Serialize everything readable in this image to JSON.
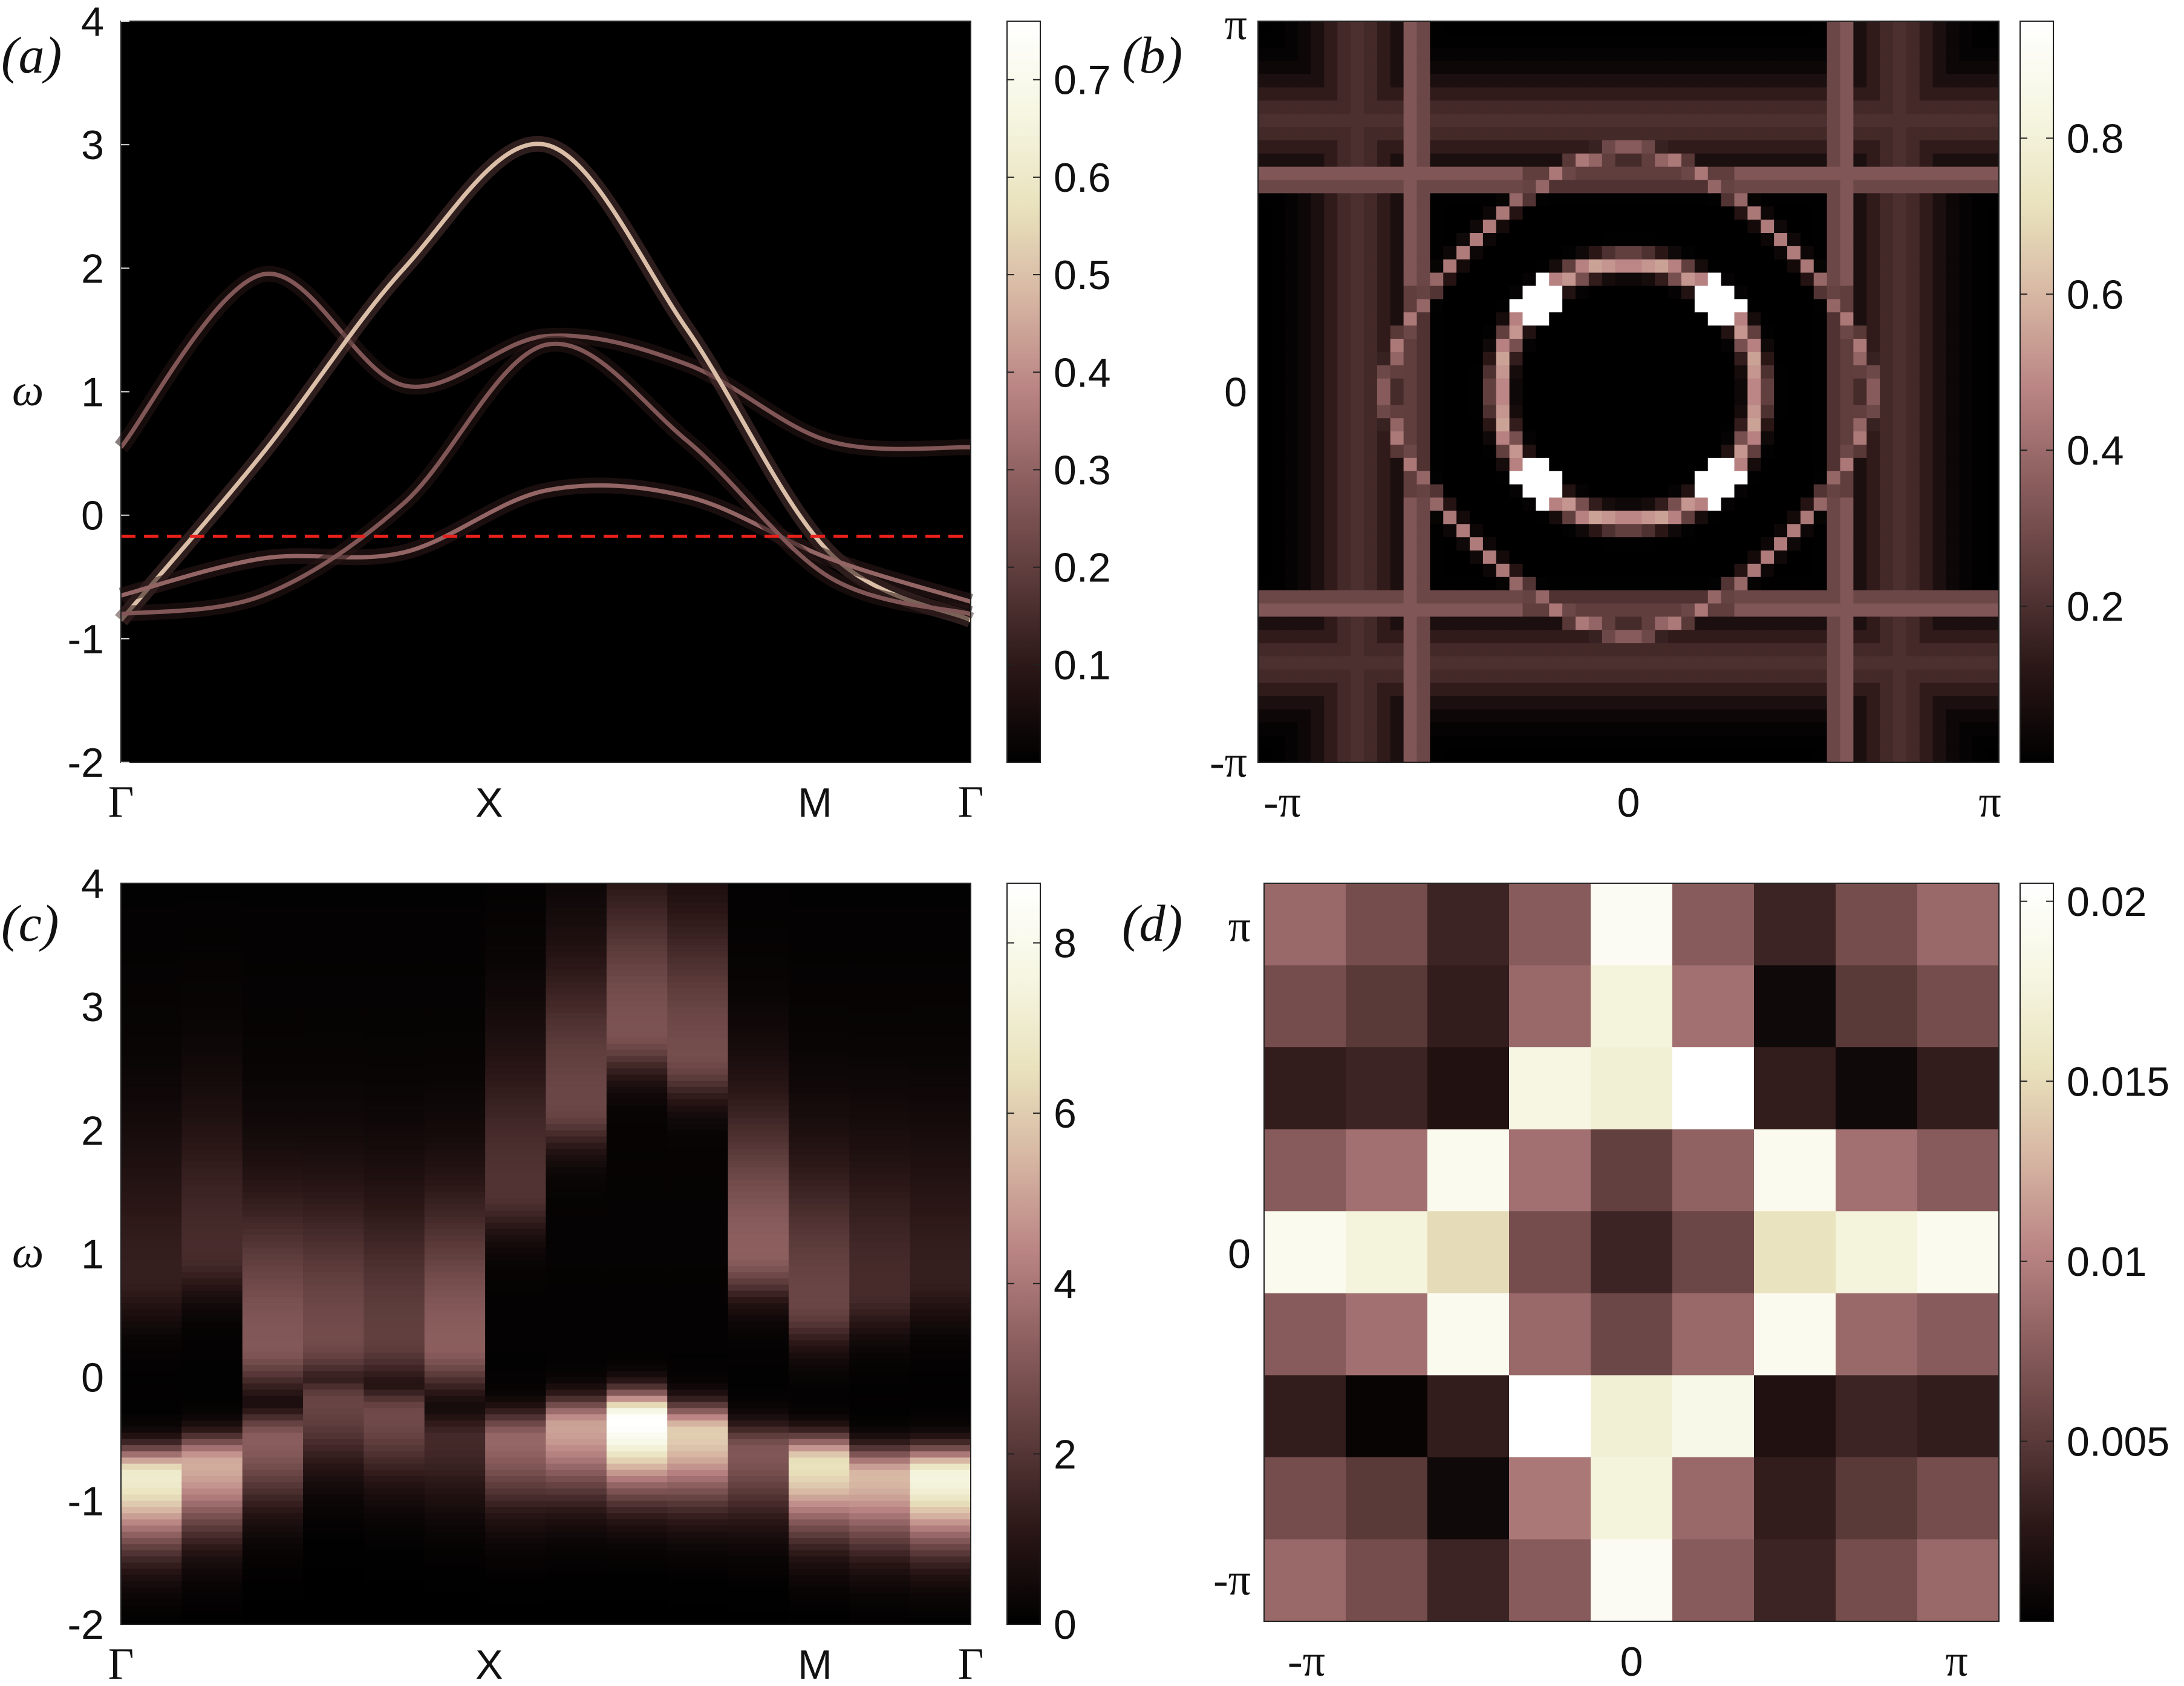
{
  "colormap": [
    "#000000",
    "#2a1616",
    "#5c3b3b",
    "#8a5d5d",
    "#b98383",
    "#d6b5a2",
    "#e9e2bd",
    "#f6f6e2",
    "#ffffff"
  ],
  "chart_data": [
    {
      "type": "heatmap",
      "panel": "(a)",
      "ylabel": "ω",
      "xticks": [
        "Γ",
        "X",
        "M",
        "Γ"
      ],
      "yticks": [
        "-2",
        "-1",
        "0",
        "1",
        "2",
        "3",
        "4"
      ],
      "ylim": [
        -2,
        4
      ],
      "colorbar": {
        "ticks": [
          "0.1",
          "0.2",
          "0.3",
          "0.4",
          "0.5",
          "0.6",
          "0.7"
        ],
        "range": [
          0,
          0.76
        ]
      },
      "fermi_level": -0.17,
      "fermi_line_color": "#e8201c",
      "bands": [
        {
          "k": [
            0,
            0.5,
            1.0,
            1.5,
            2.0,
            2.5,
            3.0
          ],
          "w": [
            0.55,
            1.95,
            1.05,
            1.45,
            1.22,
            0.6,
            0.55
          ],
          "intensity": 0.35
        },
        {
          "k": [
            0,
            0.5,
            1.0,
            1.5,
            2.0,
            2.5,
            3.0
          ],
          "w": [
            -0.85,
            0.5,
            2.0,
            3.0,
            1.5,
            -0.3,
            -0.85
          ],
          "intensity": 0.65
        },
        {
          "k": [
            0,
            0.5,
            1.0,
            1.5,
            2.0,
            2.5,
            3.0
          ],
          "w": [
            -0.65,
            -0.35,
            -0.3,
            0.2,
            0.15,
            -0.35,
            -0.7
          ],
          "intensity": 0.4
        },
        {
          "k": [
            0,
            0.5,
            1.0,
            1.5,
            2.0,
            2.5,
            3.0
          ],
          "w": [
            -0.8,
            -0.65,
            0.1,
            1.38,
            0.6,
            -0.5,
            -0.8
          ],
          "intensity": 0.35
        }
      ]
    },
    {
      "type": "heatmap",
      "panel": "(b)",
      "xticks": [
        "-π",
        "0",
        "π"
      ],
      "yticks": [
        "-π",
        "0",
        "π"
      ],
      "colorbar": {
        "ticks": [
          "0.2",
          "0.4",
          "0.6",
          "0.8"
        ],
        "range": [
          0,
          0.95
        ]
      },
      "fermi_surface": {
        "circle_radius": 1.1,
        "outer_pockets_offset": 1.8
      }
    },
    {
      "type": "heatmap",
      "panel": "(c)",
      "ylabel": "ω",
      "xticks": [
        "Γ",
        "X",
        "M",
        "Γ"
      ],
      "yticks": [
        "-2",
        "-1",
        "0",
        "1",
        "2",
        "3",
        "4"
      ],
      "ylim": [
        -2,
        4
      ],
      "colorbar": {
        "ticks": [
          "0",
          "2",
          "4",
          "6",
          "8"
        ],
        "range": [
          0,
          8.7
        ]
      },
      "columns": [
        {
          "upper": 0.8,
          "upper_amp": 1.2,
          "lower": -0.8,
          "lower_amp": 7.0
        },
        {
          "upper": 1.0,
          "upper_amp": 1.6,
          "lower": -0.7,
          "lower_amp": 5.2
        },
        {
          "upper": 0.25,
          "upper_amp": 3.0,
          "lower": -0.5,
          "lower_amp": 3.2
        },
        {
          "upper": 0.3,
          "upper_amp": 2.6,
          "lower": -0.2,
          "lower_amp": 2.4
        },
        {
          "upper": 0.3,
          "upper_amp": 2.2,
          "lower": -0.3,
          "lower_amp": 2.6
        },
        {
          "upper": 0.25,
          "upper_amp": 3.2,
          "lower": -0.5,
          "lower_amp": 1.6
        },
        {
          "upper": 1.5,
          "upper_amp": 1.8,
          "lower": -0.5,
          "lower_amp": 3.5
        },
        {
          "upper": 2.2,
          "upper_amp": 2.4,
          "lower": -0.4,
          "lower_amp": 5.0
        },
        {
          "upper": 2.8,
          "upper_amp": 2.8,
          "lower": -0.35,
          "lower_amp": 8.6
        },
        {
          "upper": 2.6,
          "upper_amp": 2.6,
          "lower": -0.45,
          "lower_amp": 6.0
        },
        {
          "upper": 1.0,
          "upper_amp": 3.2,
          "lower": -0.6,
          "lower_amp": 3.0
        },
        {
          "upper": 0.6,
          "upper_amp": 2.4,
          "lower": -0.7,
          "lower_amp": 6.5
        },
        {
          "upper": 0.7,
          "upper_amp": 1.6,
          "lower": -0.8,
          "lower_amp": 5.5
        },
        {
          "upper": 0.8,
          "upper_amp": 1.2,
          "lower": -0.8,
          "lower_amp": 7.5
        }
      ]
    },
    {
      "type": "heatmap",
      "panel": "(d)",
      "xticks": [
        "-π",
        "0",
        "π"
      ],
      "yticks": [
        "-π",
        "0",
        "π"
      ],
      "colorbar": {
        "ticks": [
          "0.005",
          "0.01",
          "0.015",
          "0.02"
        ],
        "range": [
          0,
          0.0205
        ]
      },
      "grid": [
        [
          0.0085,
          0.0065,
          0.0035,
          0.0075,
          0.0195,
          0.0075,
          0.0035,
          0.0065,
          0.0085
        ],
        [
          0.0065,
          0.005,
          0.003,
          0.0085,
          0.0175,
          0.009,
          0.001,
          0.005,
          0.0065
        ],
        [
          0.003,
          0.0035,
          0.002,
          0.018,
          0.017,
          0.0205,
          0.003,
          0.001,
          0.003
        ],
        [
          0.0075,
          0.009,
          0.019,
          0.009,
          0.0055,
          0.008,
          0.019,
          0.009,
          0.0075
        ],
        [
          0.019,
          0.0175,
          0.015,
          0.0065,
          0.0035,
          0.006,
          0.0155,
          0.0175,
          0.019
        ],
        [
          0.0075,
          0.009,
          0.019,
          0.0085,
          0.006,
          0.0085,
          0.019,
          0.0085,
          0.0075
        ],
        [
          0.003,
          0.0005,
          0.003,
          0.0205,
          0.017,
          0.0185,
          0.002,
          0.0035,
          0.003
        ],
        [
          0.0065,
          0.005,
          0.001,
          0.0095,
          0.0175,
          0.0085,
          0.003,
          0.005,
          0.0065
        ],
        [
          0.0085,
          0.0065,
          0.0035,
          0.0075,
          0.0195,
          0.0075,
          0.0035,
          0.0065,
          0.0085
        ]
      ]
    }
  ]
}
